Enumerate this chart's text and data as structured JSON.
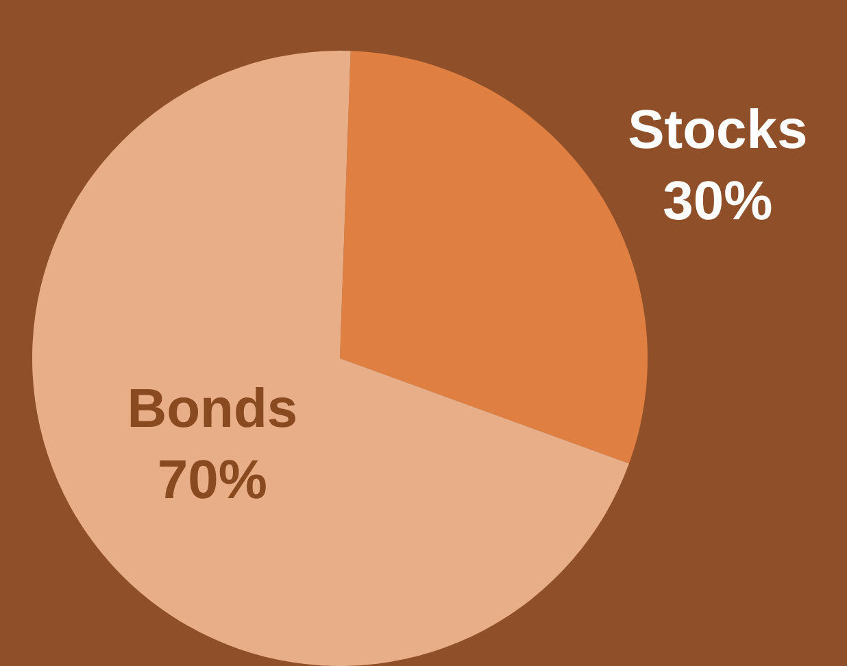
{
  "chart_data": {
    "type": "pie",
    "categories": [
      "Stocks",
      "Bonds"
    ],
    "values": [
      30,
      70
    ],
    "value_labels": [
      "30%",
      "70%"
    ],
    "colors": [
      "#e07f42",
      "#e8ae87"
    ],
    "legend": false
  }
}
